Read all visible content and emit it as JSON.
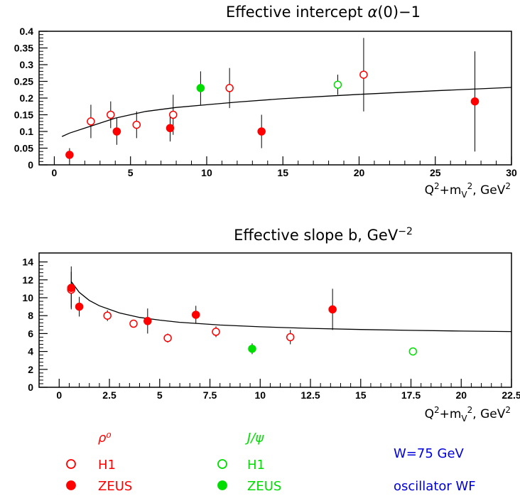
{
  "chart_data": [
    {
      "type": "scatter",
      "title": "Effective intercept  α(0)−1",
      "xlabel": "Q²+m_V², GeV²",
      "ylabel": "",
      "xlim": [
        -1,
        30
      ],
      "ylim": [
        0,
        0.4
      ],
      "x_ticks": [
        0,
        5,
        10,
        15,
        20,
        25,
        30
      ],
      "x_tick_labels": [
        "0",
        "5",
        "10",
        "15",
        "20",
        "25",
        "30"
      ],
      "y_ticks": [
        0,
        0.05,
        0.1,
        0.15,
        0.2,
        0.25,
        0.3,
        0.35,
        0.4
      ],
      "y_tick_labels": [
        "0",
        "0.05",
        "0.1",
        "0.15",
        "0.2",
        "0.25",
        "0.3",
        "0.35",
        "0.4"
      ],
      "grid": false,
      "series": [
        {
          "name": "H1",
          "group": "ρ⁰",
          "color": "#ff0000",
          "marker": "open",
          "points": [
            {
              "x": 2.4,
              "y": 0.13,
              "err": 0.05
            },
            {
              "x": 3.7,
              "y": 0.15,
              "err": 0.04
            },
            {
              "x": 5.4,
              "y": 0.12,
              "err": 0.04
            },
            {
              "x": 7.8,
              "y": 0.15,
              "err": 0.06
            },
            {
              "x": 11.5,
              "y": 0.23,
              "err": 0.06
            },
            {
              "x": 20.3,
              "y": 0.27,
              "err": 0.11
            }
          ]
        },
        {
          "name": "ZEUS",
          "group": "ρ⁰",
          "color": "#ff0000",
          "marker": "filled",
          "points": [
            {
              "x": 1.0,
              "y": 0.03,
              "err": 0.02
            },
            {
              "x": 4.1,
              "y": 0.1,
              "err": 0.04
            },
            {
              "x": 7.6,
              "y": 0.11,
              "err": 0.04
            },
            {
              "x": 13.6,
              "y": 0.1,
              "err": 0.05
            },
            {
              "x": 27.6,
              "y": 0.19,
              "err": 0.15
            }
          ]
        },
        {
          "name": "H1",
          "group": "J/ψ",
          "color": "#00dd00",
          "marker": "open",
          "points": [
            {
              "x": 18.6,
              "y": 0.24,
              "err": 0.03
            }
          ]
        },
        {
          "name": "ZEUS",
          "group": "J/ψ",
          "color": "#00dd00",
          "marker": "filled",
          "points": [
            {
              "x": 9.6,
              "y": 0.23,
              "err": 0.05
            }
          ]
        }
      ],
      "curve": {
        "label": "oscillator WF",
        "x": [
          0.5,
          1,
          2,
          3,
          4,
          5,
          6,
          8,
          10,
          12,
          15,
          18,
          20,
          25,
          30
        ],
        "y": [
          0.085,
          0.095,
          0.11,
          0.125,
          0.14,
          0.15,
          0.16,
          0.172,
          0.18,
          0.188,
          0.198,
          0.206,
          0.211,
          0.222,
          0.232
        ]
      }
    },
    {
      "type": "scatter",
      "title": "Effective slope  b, GeV⁻²",
      "xlabel": "Q²+m_V², GeV²",
      "ylabel": "",
      "xlim": [
        -1,
        22.5
      ],
      "ylim": [
        0,
        15
      ],
      "x_ticks": [
        0,
        2.5,
        5,
        7.5,
        10,
        12.5,
        15,
        17.5,
        20,
        22.5
      ],
      "x_tick_labels": [
        "0",
        "2.5",
        "5",
        "7.5",
        "10",
        "12.5",
        "15",
        "17.5",
        "20",
        "22.5"
      ],
      "y_ticks": [
        0,
        2,
        4,
        6,
        8,
        10,
        12,
        14
      ],
      "y_tick_labels": [
        "0",
        "2",
        "4",
        "6",
        "8",
        "10",
        "12",
        "14"
      ],
      "grid": false,
      "series": [
        {
          "name": "H1",
          "group": "ρ⁰",
          "color": "#ff0000",
          "marker": "open",
          "points": [
            {
              "x": 0.6,
              "y": 10.9,
              "err": 2.0
            },
            {
              "x": 2.4,
              "y": 8.0,
              "err": 0.6
            },
            {
              "x": 3.7,
              "y": 7.1,
              "err": 0.4
            },
            {
              "x": 5.4,
              "y": 5.5,
              "err": 0.5
            },
            {
              "x": 7.8,
              "y": 6.2,
              "err": 0.6
            },
            {
              "x": 11.5,
              "y": 5.6,
              "err": 0.8
            }
          ]
        },
        {
          "name": "ZEUS",
          "group": "ρ⁰",
          "color": "#ff0000",
          "marker": "filled",
          "points": [
            {
              "x": 0.6,
              "y": 11.1,
              "err": 2.4
            },
            {
              "x": 1.0,
              "y": 9.0,
              "err": 1.1
            },
            {
              "x": 4.4,
              "y": 7.4,
              "err": 1.4
            },
            {
              "x": 6.8,
              "y": 8.1,
              "err": 1.0
            },
            {
              "x": 13.6,
              "y": 8.7,
              "err": 2.3
            }
          ]
        },
        {
          "name": "H1",
          "group": "J/ψ",
          "color": "#00dd00",
          "marker": "open",
          "points": [
            {
              "x": 17.6,
              "y": 4.0,
              "err": 0.3
            }
          ]
        },
        {
          "name": "ZEUS",
          "group": "J/ψ",
          "color": "#00dd00",
          "marker": "filled",
          "points": [
            {
              "x": 9.6,
              "y": 4.3,
              "err": 0.6
            }
          ]
        }
      ],
      "curve": {
        "label": "oscillator WF",
        "x": [
          0.6,
          1,
          1.5,
          2,
          3,
          4,
          5,
          6,
          8,
          10,
          12.5,
          15,
          17.5,
          20,
          22.5
        ],
        "y": [
          11.8,
          10.6,
          9.7,
          9.1,
          8.3,
          7.8,
          7.5,
          7.25,
          6.95,
          6.75,
          6.58,
          6.45,
          6.36,
          6.28,
          6.22
        ]
      }
    }
  ],
  "legend": {
    "rho_header": "ρ⁰",
    "jpsi_header": "J/ψ",
    "h1_label": "H1",
    "zeus_label": "ZEUS",
    "energy_note": "W=75 GeV",
    "model_note": "oscillator WF",
    "rho_color": "#ff0000",
    "jpsi_color": "#00dd00",
    "note_color": "#0000dd"
  }
}
